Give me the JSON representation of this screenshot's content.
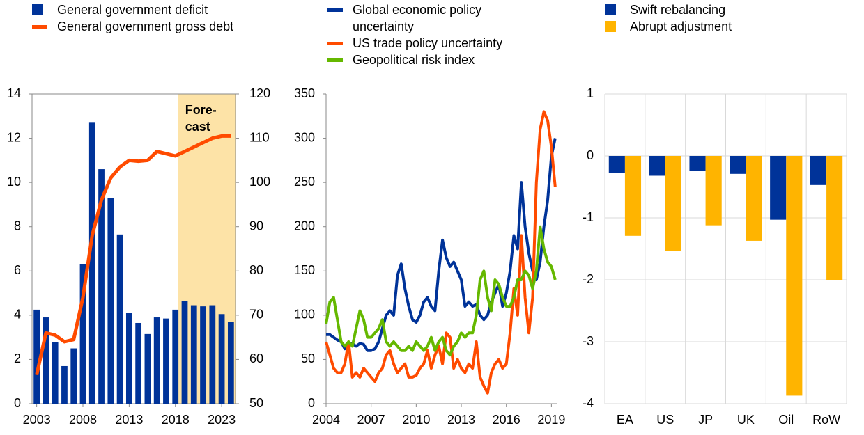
{
  "chart_data": [
    {
      "type": "bar",
      "x": [
        2003,
        2004,
        2005,
        2006,
        2007,
        2008,
        2009,
        2010,
        2011,
        2012,
        2013,
        2014,
        2015,
        2016,
        2017,
        2018,
        2019,
        2020,
        2021,
        2022,
        2023,
        2024
      ],
      "series": [
        {
          "name": "General government deficit",
          "type": "bar",
          "color": "#003399",
          "values": [
            4.25,
            3.9,
            2.8,
            1.7,
            2.5,
            6.3,
            12.7,
            10.6,
            9.3,
            7.65,
            4.1,
            3.65,
            3.15,
            3.9,
            3.85,
            4.25,
            4.65,
            4.45,
            4.4,
            4.45,
            4.05,
            3.7
          ]
        },
        {
          "name": "General government gross debt",
          "type": "line",
          "axis": "y2",
          "color": "#ff4b00",
          "values": [
            56.5,
            66,
            65.5,
            64,
            64.5,
            74,
            88,
            96,
            101,
            103.5,
            105,
            104.8,
            105,
            107,
            106.5,
            106,
            107,
            108,
            109,
            110,
            110.5,
            110.5
          ]
        }
      ],
      "annotation": [
        "Fore-",
        "cast"
      ],
      "forecast_start": 2018.3,
      "xlim": [
        2002.5,
        2024.5
      ],
      "xticks": [
        2003,
        2008,
        2013,
        2018,
        2023
      ],
      "ylim": [
        0,
        14
      ],
      "yticks": [
        0,
        2,
        4,
        6,
        8,
        10,
        12,
        14
      ],
      "y2lim": [
        50,
        120
      ],
      "y2ticks": [
        50,
        60,
        70,
        80,
        90,
        100,
        110,
        120
      ],
      "grid": false
    },
    {
      "type": "line",
      "x": [
        2004,
        2004.25,
        2004.5,
        2004.75,
        2005,
        2005.25,
        2005.5,
        2005.75,
        2006,
        2006.25,
        2006.5,
        2006.75,
        2007,
        2007.25,
        2007.5,
        2007.75,
        2008,
        2008.25,
        2008.5,
        2008.75,
        2009,
        2009.25,
        2009.5,
        2009.75,
        2010,
        2010.25,
        2010.5,
        2010.75,
        2011,
        2011.25,
        2011.5,
        2011.75,
        2012,
        2012.25,
        2012.5,
        2012.75,
        2013,
        2013.25,
        2013.5,
        2013.75,
        2014,
        2014.25,
        2014.5,
        2014.75,
        2015,
        2015.25,
        2015.5,
        2015.75,
        2016,
        2016.25,
        2016.5,
        2016.75,
        2017,
        2017.25,
        2017.5,
        2017.75,
        2018,
        2018.25,
        2018.5,
        2018.75,
        2019,
        2019.25
      ],
      "series": [
        {
          "name": "Global economic policy uncertainty",
          "color": "#003399",
          "values": [
            78,
            78,
            75,
            72,
            70,
            62,
            68,
            68,
            65,
            68,
            67,
            60,
            60,
            62,
            70,
            85,
            100,
            105,
            100,
            145,
            158,
            130,
            110,
            95,
            92,
            100,
            115,
            120,
            110,
            105,
            150,
            185,
            165,
            155,
            160,
            150,
            140,
            110,
            115,
            110,
            112,
            100,
            95,
            100,
            115,
            125,
            135,
            110,
            125,
            150,
            190,
            175,
            250,
            200,
            170,
            150,
            140,
            160,
            200,
            230,
            280,
            300
          ]
        },
        {
          "name": "US trade policy uncertainty",
          "color": "#ff4b00",
          "values": [
            70,
            55,
            40,
            35,
            35,
            45,
            70,
            30,
            35,
            30,
            40,
            35,
            30,
            25,
            35,
            40,
            55,
            60,
            45,
            35,
            40,
            45,
            30,
            30,
            32,
            40,
            45,
            60,
            40,
            55,
            65,
            45,
            80,
            75,
            40,
            50,
            40,
            35,
            45,
            40,
            70,
            30,
            20,
            12,
            35,
            45,
            50,
            40,
            45,
            80,
            130,
            100,
            190,
            120,
            80,
            120,
            250,
            310,
            330,
            320,
            290,
            245
          ]
        },
        {
          "name": "Geopolitical risk index",
          "color": "#65b800",
          "values": [
            90,
            115,
            120,
            95,
            70,
            65,
            70,
            65,
            85,
            105,
            95,
            75,
            75,
            80,
            85,
            95,
            70,
            65,
            70,
            65,
            60,
            60,
            65,
            60,
            70,
            65,
            60,
            65,
            75,
            60,
            70,
            75,
            60,
            55,
            65,
            70,
            80,
            75,
            80,
            80,
            100,
            140,
            150,
            120,
            105,
            140,
            135,
            120,
            110,
            110,
            120,
            140,
            140,
            150,
            145,
            130,
            150,
            200,
            175,
            160,
            155,
            140
          ]
        }
      ],
      "xlim": [
        2004,
        2019.4
      ],
      "xticks": [
        2004,
        2007,
        2010,
        2013,
        2016,
        2019
      ],
      "ylim": [
        0,
        350
      ],
      "yticks": [
        0,
        50,
        100,
        150,
        200,
        250,
        300,
        350
      ],
      "grid": false
    },
    {
      "type": "bar",
      "categories": [
        "EA",
        "US",
        "JP",
        "UK",
        "Oil",
        "RoW"
      ],
      "series": [
        {
          "name": "Swift rebalancing",
          "type": "bar",
          "color": "#003399",
          "values": [
            -0.27,
            -0.32,
            -0.24,
            -0.29,
            -1.03,
            -0.47
          ]
        },
        {
          "name": "Abrupt adjustment",
          "type": "bar",
          "color": "#ffb400",
          "values": [
            -1.29,
            -1.53,
            -1.12,
            -1.37,
            -3.87,
            -2.0
          ]
        }
      ],
      "ylim": [
        -4,
        1
      ],
      "yticks": [
        -4,
        -3,
        -2,
        -1,
        0,
        1
      ],
      "grid": true
    }
  ]
}
